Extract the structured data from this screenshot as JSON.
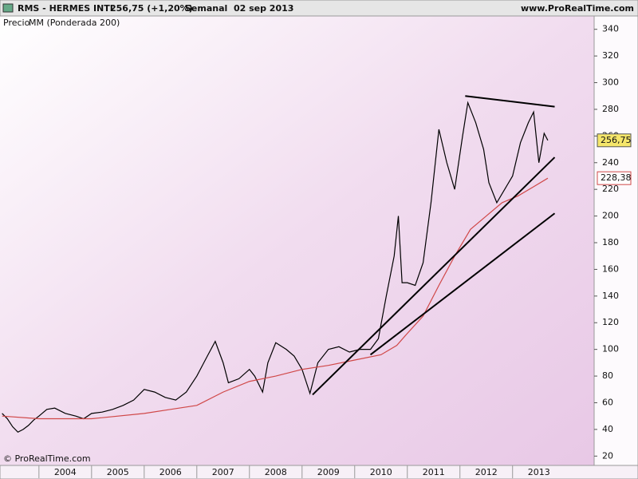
{
  "chart_data": {
    "type": "line",
    "title": "RMS - HERMES INTL",
    "quote": "256,75 (+1,20%)",
    "period": "Semanal  02 sep 2013",
    "source": "www.ProRealTime.com",
    "copyright": "© ProRealTime.com",
    "xlim": [
      2003.26,
      2014.55
    ],
    "xticks": [
      2004,
      2005,
      2006,
      2007,
      2008,
      2009,
      2010,
      2011,
      2012,
      2013
    ],
    "ylim": [
      13,
      350
    ],
    "yticks": [
      20,
      40,
      60,
      80,
      100,
      120,
      140,
      160,
      180,
      200,
      220,
      240,
      260,
      280,
      300,
      320,
      340
    ],
    "series": [
      {
        "name": "Precio",
        "color": "#000000",
        "last_value_label": "256,75",
        "x": [
          2003.3,
          2003.4,
          2003.5,
          2003.6,
          2003.7,
          2003.8,
          2003.9,
          2004.0,
          2004.15,
          2004.3,
          2004.5,
          2004.7,
          2004.85,
          2005.0,
          2005.2,
          2005.4,
          2005.6,
          2005.8,
          2006.0,
          2006.2,
          2006.4,
          2006.6,
          2006.8,
          2007.0,
          2007.2,
          2007.35,
          2007.5,
          2007.6,
          2007.8,
          2008.0,
          2008.1,
          2008.25,
          2008.35,
          2008.5,
          2008.7,
          2008.85,
          2009.0,
          2009.15,
          2009.3,
          2009.5,
          2009.7,
          2009.9,
          2010.1,
          2010.3,
          2010.45,
          2010.6,
          2010.75,
          2010.83,
          2010.9,
          2011.0,
          2011.15,
          2011.3,
          2011.45,
          2011.6,
          2011.75,
          2011.9,
          2012.05,
          2012.15,
          2012.3,
          2012.45,
          2012.55,
          2012.7,
          2012.85,
          2013.0,
          2013.15,
          2013.3,
          2013.4,
          2013.5,
          2013.6,
          2013.67
        ],
        "values": [
          52,
          48,
          42,
          38,
          40,
          43,
          47,
          50,
          55,
          56,
          52,
          50,
          48,
          52,
          53,
          55,
          58,
          62,
          70,
          68,
          64,
          62,
          68,
          80,
          95,
          106,
          90,
          75,
          78,
          85,
          80,
          68,
          90,
          105,
          100,
          95,
          85,
          67,
          90,
          100,
          102,
          98,
          100,
          100,
          108,
          140,
          170,
          200,
          150,
          150,
          148,
          165,
          210,
          265,
          240,
          220,
          260,
          285,
          270,
          250,
          225,
          210,
          220,
          230,
          255,
          270,
          278,
          240,
          262,
          256.75
        ]
      },
      {
        "name": "MM (Ponderada 200)",
        "color": "#d04848",
        "last_value_label": "228,38",
        "x": [
          2003.3,
          2004.0,
          2005.0,
          2006.0,
          2006.5,
          2007.0,
          2007.5,
          2008.0,
          2008.5,
          2009.0,
          2009.5,
          2010.0,
          2010.5,
          2010.8,
          2011.0,
          2011.3,
          2011.6,
          2011.9,
          2012.2,
          2012.5,
          2012.8,
          2013.1,
          2013.4,
          2013.67
        ],
        "values": [
          50,
          48,
          48,
          52,
          55,
          58,
          68,
          76,
          80,
          85,
          88,
          92,
          96,
          103,
          112,
          125,
          148,
          170,
          190,
          200,
          210,
          215,
          222,
          228.38
        ]
      }
    ],
    "trendlines": [
      {
        "x": [
          2012.1,
          2013.8
        ],
        "values": [
          290,
          282
        ]
      },
      {
        "x": [
          2009.2,
          2013.8
        ],
        "values": [
          66,
          244
        ]
      },
      {
        "x": [
          2010.3,
          2013.8
        ],
        "values": [
          96,
          202
        ]
      }
    ]
  }
}
